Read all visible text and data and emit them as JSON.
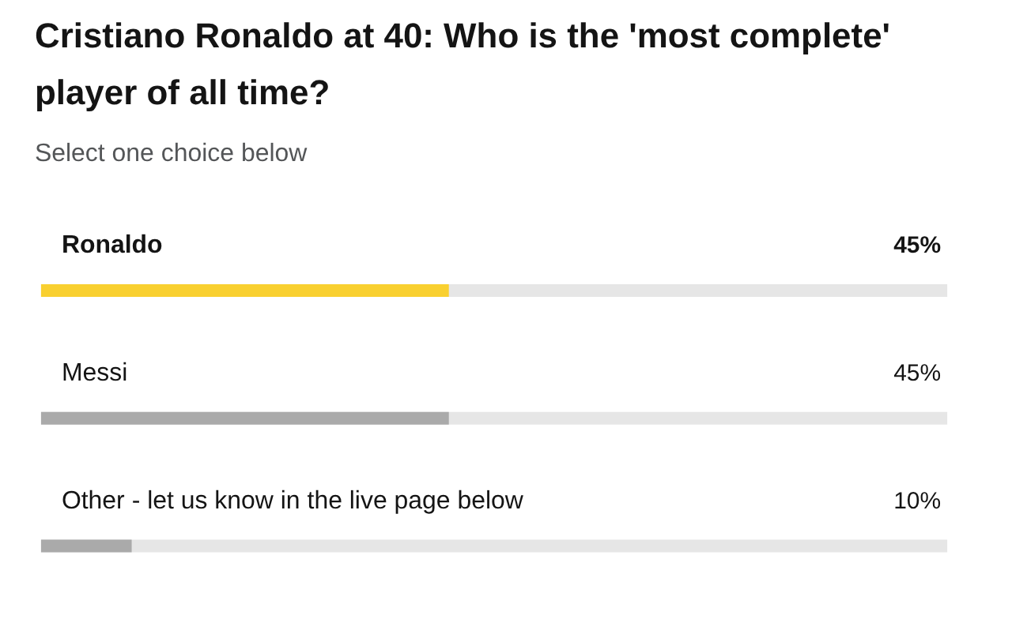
{
  "chart_data": {
    "type": "bar",
    "orientation": "horizontal",
    "title": "Cristiano Ronaldo at 40: Who is the 'most complete' player of all time?",
    "subtitle": "Select one choice below",
    "categories": [
      "Ronaldo",
      "Messi",
      "Other - let us know in the live page below"
    ],
    "values": [
      45,
      45,
      10
    ],
    "colors": [
      "#f9d030",
      "#aaaaaa",
      "#aaaaaa"
    ],
    "value_labels": [
      "45%",
      "45%",
      "10%"
    ],
    "xlim": [
      0,
      100
    ]
  }
}
